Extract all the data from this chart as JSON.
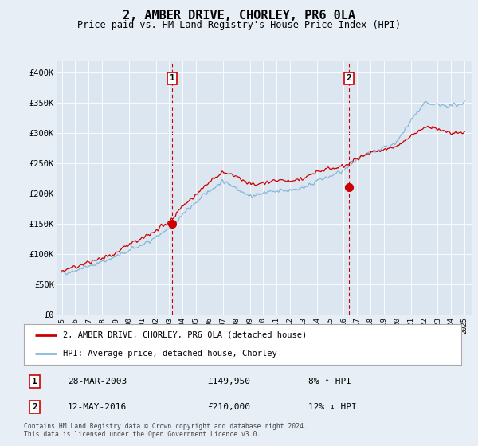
{
  "title": "2, AMBER DRIVE, CHORLEY, PR6 0LA",
  "subtitle": "Price paid vs. HM Land Registry's House Price Index (HPI)",
  "bg_color": "#e8eef5",
  "plot_bg_color": "#dce6f0",
  "ylim": [
    0,
    420000
  ],
  "yticks": [
    0,
    50000,
    100000,
    150000,
    200000,
    250000,
    300000,
    350000,
    400000
  ],
  "xstart_year": 1995,
  "xend_year": 2025,
  "legend_entries": [
    "2, AMBER DRIVE, CHORLEY, PR6 0LA (detached house)",
    "HPI: Average price, detached house, Chorley"
  ],
  "sale1_label": "1",
  "sale1_date": "28-MAR-2003",
  "sale1_price": "£149,950",
  "sale1_hpi": "8% ↑ HPI",
  "sale1_year": 2003.23,
  "sale1_value": 149950,
  "sale2_label": "2",
  "sale2_date": "12-MAY-2016",
  "sale2_price": "£210,000",
  "sale2_hpi": "12% ↓ HPI",
  "sale2_year": 2016.37,
  "sale2_value": 210000,
  "line_red": "#cc0000",
  "line_blue": "#85b8d8",
  "vline_color": "#cc0000",
  "footer_text": "Contains HM Land Registry data © Crown copyright and database right 2024.\nThis data is licensed under the Open Government Licence v3.0.",
  "hpi_years": [
    1995.0,
    1995.5,
    1996.0,
    1996.5,
    1997.0,
    1997.5,
    1998.0,
    1998.5,
    1999.0,
    1999.5,
    2000.0,
    2000.5,
    2001.0,
    2001.5,
    2002.0,
    2002.5,
    2003.0,
    2003.5,
    2004.0,
    2004.5,
    2005.0,
    2005.5,
    2006.0,
    2006.5,
    2007.0,
    2007.5,
    2008.0,
    2008.5,
    2009.0,
    2009.5,
    2010.0,
    2010.5,
    2011.0,
    2011.5,
    2012.0,
    2012.5,
    2013.0,
    2013.5,
    2014.0,
    2014.5,
    2015.0,
    2015.5,
    2016.0,
    2016.5,
    2017.0,
    2017.5,
    2018.0,
    2018.5,
    2019.0,
    2019.5,
    2020.0,
    2020.5,
    2021.0,
    2021.5,
    2022.0,
    2022.5,
    2023.0,
    2023.5,
    2024.0,
    2024.5,
    2025.0
  ],
  "hpi_values": [
    68000,
    70000,
    73000,
    76000,
    80000,
    83000,
    87000,
    91000,
    95000,
    100000,
    105000,
    110000,
    115000,
    121000,
    128000,
    134000,
    141000,
    153000,
    165000,
    175000,
    185000,
    195000,
    205000,
    212000,
    220000,
    215000,
    210000,
    202000,
    195000,
    197000,
    200000,
    202000,
    205000,
    205000,
    205000,
    207000,
    210000,
    215000,
    220000,
    224000,
    228000,
    233000,
    238000,
    246000,
    255000,
    261000,
    268000,
    271000,
    275000,
    280000,
    285000,
    302000,
    320000,
    335000,
    350000,
    347000,
    345000,
    344000,
    345000,
    347000,
    350000
  ],
  "price_years": [
    1995.0,
    1995.5,
    1996.0,
    1996.5,
    1997.0,
    1997.5,
    1998.0,
    1998.5,
    1999.0,
    1999.5,
    2000.0,
    2000.5,
    2001.0,
    2001.5,
    2002.0,
    2002.5,
    2003.0,
    2003.5,
    2004.0,
    2004.5,
    2005.0,
    2005.5,
    2006.0,
    2006.5,
    2007.0,
    2007.5,
    2008.0,
    2008.5,
    2009.0,
    2009.5,
    2010.0,
    2010.5,
    2011.0,
    2011.5,
    2012.0,
    2012.5,
    2013.0,
    2013.5,
    2014.0,
    2014.5,
    2015.0,
    2015.5,
    2016.0,
    2016.5,
    2017.0,
    2017.5,
    2018.0,
    2018.5,
    2019.0,
    2019.5,
    2020.0,
    2020.5,
    2021.0,
    2021.5,
    2022.0,
    2022.5,
    2023.0,
    2023.5,
    2024.0,
    2024.5,
    2025.0
  ],
  "price_values": [
    72000,
    75000,
    78000,
    82000,
    86000,
    89000,
    93000,
    97000,
    102000,
    108000,
    115000,
    120000,
    125000,
    131000,
    138000,
    145000,
    152000,
    166000,
    180000,
    189000,
    198000,
    208000,
    218000,
    226000,
    235000,
    231000,
    228000,
    221000,
    215000,
    216000,
    218000,
    220000,
    222000,
    221000,
    220000,
    222000,
    225000,
    230000,
    235000,
    238000,
    242000,
    243000,
    245000,
    251000,
    258000,
    263000,
    268000,
    270000,
    272000,
    275000,
    278000,
    286000,
    295000,
    302000,
    310000,
    307000,
    305000,
    303000,
    300000,
    301000,
    303000
  ]
}
